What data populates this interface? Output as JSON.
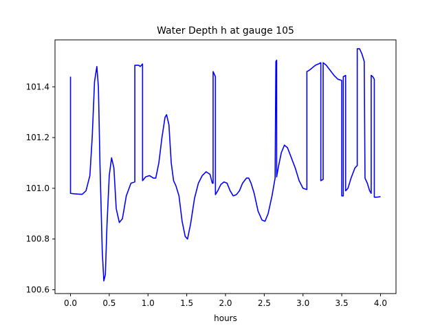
{
  "chart_data": {
    "type": "line",
    "title": "Water Depth h at gauge 105",
    "xlabel": "hours",
    "ylabel": "",
    "xlim": [
      -0.2,
      4.2
    ],
    "ylim": [
      100.585,
      101.585
    ],
    "grid": false,
    "x_ticks": [
      {
        "value": 0.0,
        "label": "0.0"
      },
      {
        "value": 0.5,
        "label": "0.5"
      },
      {
        "value": 1.0,
        "label": "1.0"
      },
      {
        "value": 1.5,
        "label": "1.5"
      },
      {
        "value": 2.0,
        "label": "2.0"
      },
      {
        "value": 2.5,
        "label": "2.5"
      },
      {
        "value": 3.0,
        "label": "3.0"
      },
      {
        "value": 3.5,
        "label": "3.5"
      },
      {
        "value": 4.0,
        "label": "4.0"
      }
    ],
    "y_ticks": [
      {
        "value": 100.6,
        "label": "100.6"
      },
      {
        "value": 100.8,
        "label": "100.8"
      },
      {
        "value": 101.0,
        "label": "101.0"
      },
      {
        "value": 101.2,
        "label": "101.2"
      },
      {
        "value": 101.4,
        "label": "101.4"
      }
    ],
    "series": [
      {
        "color": "#0000ff",
        "points": [
          [
            0.0,
            101.44
          ],
          [
            0.0,
            100.98
          ],
          [
            0.05,
            100.978
          ],
          [
            0.1,
            100.977
          ],
          [
            0.15,
            100.976
          ],
          [
            0.2,
            100.99
          ],
          [
            0.25,
            101.05
          ],
          [
            0.28,
            101.2
          ],
          [
            0.31,
            101.42
          ],
          [
            0.34,
            101.48
          ],
          [
            0.36,
            101.4
          ],
          [
            0.38,
            101.1
          ],
          [
            0.41,
            100.75
          ],
          [
            0.43,
            100.635
          ],
          [
            0.45,
            100.66
          ],
          [
            0.47,
            100.85
          ],
          [
            0.5,
            101.05
          ],
          [
            0.53,
            101.12
          ],
          [
            0.56,
            101.08
          ],
          [
            0.59,
            100.92
          ],
          [
            0.63,
            100.865
          ],
          [
            0.67,
            100.88
          ],
          [
            0.72,
            100.97
          ],
          [
            0.78,
            101.02
          ],
          [
            0.83,
            101.025
          ],
          [
            0.83,
            101.485
          ],
          [
            0.88,
            101.485
          ],
          [
            0.9,
            101.48
          ],
          [
            0.93,
            101.49
          ],
          [
            0.93,
            101.03
          ],
          [
            0.97,
            101.045
          ],
          [
            1.02,
            101.05
          ],
          [
            1.07,
            101.04
          ],
          [
            1.1,
            101.04
          ],
          [
            1.14,
            101.1
          ],
          [
            1.18,
            101.2
          ],
          [
            1.22,
            101.28
          ],
          [
            1.24,
            101.29
          ],
          [
            1.27,
            101.25
          ],
          [
            1.3,
            101.1
          ],
          [
            1.33,
            101.03
          ],
          [
            1.36,
            101.01
          ],
          [
            1.4,
            100.97
          ],
          [
            1.44,
            100.87
          ],
          [
            1.48,
            100.81
          ],
          [
            1.51,
            100.8
          ],
          [
            1.55,
            100.86
          ],
          [
            1.6,
            100.96
          ],
          [
            1.65,
            101.02
          ],
          [
            1.7,
            101.05
          ],
          [
            1.75,
            101.065
          ],
          [
            1.8,
            101.055
          ],
          [
            1.83,
            101.02
          ],
          [
            1.84,
            101.02
          ],
          [
            1.84,
            101.46
          ],
          [
            1.87,
            101.44
          ],
          [
            1.87,
            100.975
          ],
          [
            1.9,
            100.99
          ],
          [
            1.94,
            101.015
          ],
          [
            1.98,
            101.025
          ],
          [
            2.02,
            101.02
          ],
          [
            2.06,
            100.99
          ],
          [
            2.1,
            100.97
          ],
          [
            2.14,
            100.975
          ],
          [
            2.18,
            100.99
          ],
          [
            2.22,
            101.02
          ],
          [
            2.27,
            101.04
          ],
          [
            2.3,
            101.04
          ],
          [
            2.33,
            101.02
          ],
          [
            2.37,
            100.98
          ],
          [
            2.42,
            100.91
          ],
          [
            2.47,
            100.875
          ],
          [
            2.51,
            100.87
          ],
          [
            2.55,
            100.9
          ],
          [
            2.6,
            100.97
          ],
          [
            2.64,
            101.04
          ],
          [
            2.65,
            101.5
          ],
          [
            2.66,
            101.505
          ],
          [
            2.66,
            101.045
          ],
          [
            2.68,
            101.08
          ],
          [
            2.72,
            101.14
          ],
          [
            2.76,
            101.17
          ],
          [
            2.8,
            101.16
          ],
          [
            2.85,
            101.12
          ],
          [
            2.9,
            101.08
          ],
          [
            2.95,
            101.03
          ],
          [
            3.0,
            101.0
          ],
          [
            3.05,
            100.995
          ],
          [
            3.05,
            101.46
          ],
          [
            3.08,
            101.465
          ],
          [
            3.12,
            101.475
          ],
          [
            3.16,
            101.485
          ],
          [
            3.2,
            101.49
          ],
          [
            3.23,
            101.495
          ],
          [
            3.23,
            101.03
          ],
          [
            3.26,
            101.035
          ],
          [
            3.26,
            101.495
          ],
          [
            3.3,
            101.485
          ],
          [
            3.35,
            101.465
          ],
          [
            3.4,
            101.445
          ],
          [
            3.45,
            101.43
          ],
          [
            3.5,
            101.425
          ],
          [
            3.5,
            100.97
          ],
          [
            3.52,
            100.97
          ],
          [
            3.52,
            101.44
          ],
          [
            3.55,
            101.445
          ],
          [
            3.55,
            100.99
          ],
          [
            3.58,
            101.0
          ],
          [
            3.62,
            101.04
          ],
          [
            3.67,
            101.08
          ],
          [
            3.7,
            101.09
          ],
          [
            3.7,
            101.55
          ],
          [
            3.73,
            101.55
          ],
          [
            3.76,
            101.53
          ],
          [
            3.79,
            101.5
          ],
          [
            3.8,
            101.04
          ],
          [
            3.83,
            101.02
          ],
          [
            3.86,
            100.99
          ],
          [
            3.88,
            100.98
          ],
          [
            3.88,
            101.445
          ],
          [
            3.9,
            101.44
          ],
          [
            3.92,
            101.43
          ],
          [
            3.92,
            100.965
          ],
          [
            3.95,
            100.965
          ],
          [
            4.0,
            100.967
          ]
        ]
      }
    ]
  }
}
